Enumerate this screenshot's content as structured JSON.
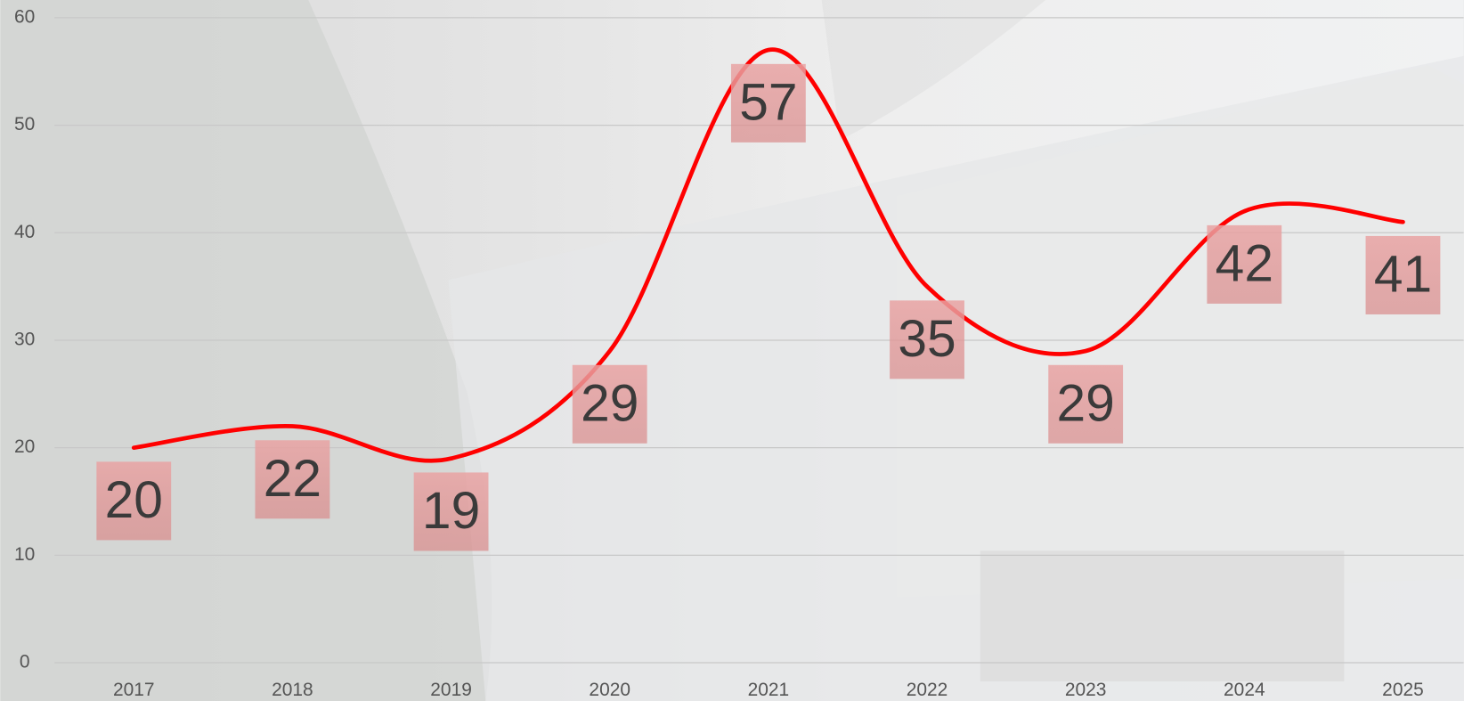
{
  "chart_data": {
    "type": "line",
    "categories": [
      "2017",
      "2018",
      "2019",
      "2020",
      "2021",
      "2022",
      "2023",
      "2024",
      "2025"
    ],
    "series": [
      {
        "name": "",
        "color": "#ff0000",
        "values": [
          20,
          22,
          19,
          29,
          57,
          35,
          29,
          42,
          41
        ]
      }
    ],
    "ylim": [
      0,
      60
    ],
    "yticks": [
      0,
      10,
      20,
      30,
      40,
      50,
      60
    ],
    "grid": true,
    "smooth": true
  }
}
